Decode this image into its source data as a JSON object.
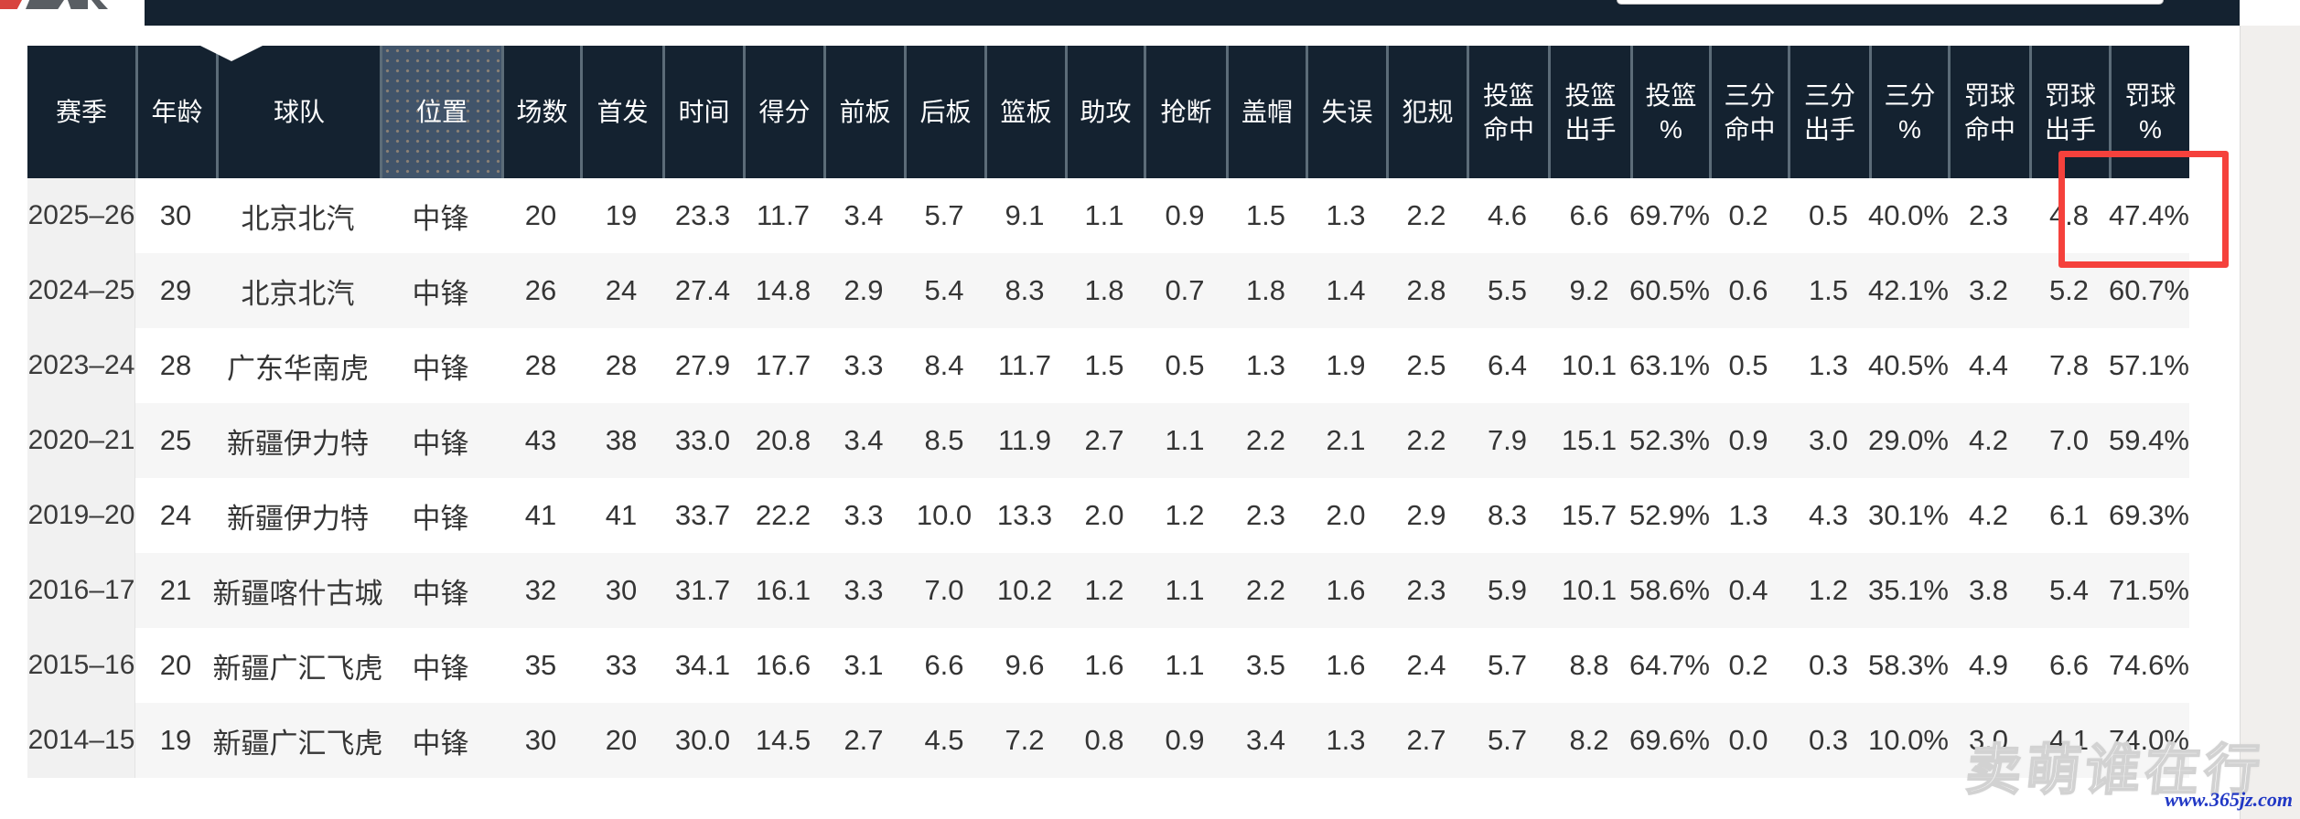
{
  "topbar": {
    "logo_icon": "site-logo",
    "search_box": {
      "value": "",
      "placeholder": ""
    }
  },
  "table": {
    "columns": [
      "赛季",
      "年龄",
      "球队",
      "位置",
      "场数",
      "首发",
      "时间",
      "得分",
      "前板",
      "后板",
      "篮板",
      "助攻",
      "抢断",
      "盖帽",
      "失误",
      "犯规",
      "投篮\n命中",
      "投篮\n出手",
      "投篮\n%",
      "三分\n命中",
      "三分\n出手",
      "三分\n%",
      "罚球\n命中",
      "罚球\n出手",
      "罚球\n%"
    ],
    "highlighted_column_index": 3,
    "rows": [
      [
        "2025–26",
        "30",
        "北京北汽",
        "中锋",
        "20",
        "19",
        "23.3",
        "11.7",
        "3.4",
        "5.7",
        "9.1",
        "1.1",
        "0.9",
        "1.5",
        "1.3",
        "2.2",
        "4.6",
        "6.6",
        "69.7%",
        "0.2",
        "0.5",
        "40.0%",
        "2.3",
        "4.8",
        "47.4%"
      ],
      [
        "2024–25",
        "29",
        "北京北汽",
        "中锋",
        "26",
        "24",
        "27.4",
        "14.8",
        "2.9",
        "5.4",
        "8.3",
        "1.8",
        "0.7",
        "1.8",
        "1.4",
        "2.8",
        "5.5",
        "9.2",
        "60.5%",
        "0.6",
        "1.5",
        "42.1%",
        "3.2",
        "5.2",
        "60.7%"
      ],
      [
        "2023–24",
        "28",
        "广东华南虎",
        "中锋",
        "28",
        "28",
        "27.9",
        "17.7",
        "3.3",
        "8.4",
        "11.7",
        "1.5",
        "0.5",
        "1.3",
        "1.9",
        "2.5",
        "6.4",
        "10.1",
        "63.1%",
        "0.5",
        "1.3",
        "40.5%",
        "4.4",
        "7.8",
        "57.1%"
      ],
      [
        "2020–21",
        "25",
        "新疆伊力特",
        "中锋",
        "43",
        "38",
        "33.0",
        "20.8",
        "3.4",
        "8.5",
        "11.9",
        "2.7",
        "1.1",
        "2.2",
        "2.1",
        "2.2",
        "7.9",
        "15.1",
        "52.3%",
        "0.9",
        "3.0",
        "29.0%",
        "4.2",
        "7.0",
        "59.4%"
      ],
      [
        "2019–20",
        "24",
        "新疆伊力特",
        "中锋",
        "41",
        "41",
        "33.7",
        "22.2",
        "3.3",
        "10.0",
        "13.3",
        "2.0",
        "1.2",
        "2.3",
        "2.0",
        "2.9",
        "8.3",
        "15.7",
        "52.9%",
        "1.3",
        "4.3",
        "30.1%",
        "4.2",
        "6.1",
        "69.3%"
      ],
      [
        "2016–17",
        "21",
        "新疆喀什古城",
        "中锋",
        "32",
        "30",
        "31.7",
        "16.1",
        "3.3",
        "7.0",
        "10.2",
        "1.2",
        "1.1",
        "2.2",
        "1.6",
        "2.3",
        "5.9",
        "10.1",
        "58.6%",
        "0.4",
        "1.2",
        "35.1%",
        "3.8",
        "5.4",
        "71.5%"
      ],
      [
        "2015–16",
        "20",
        "新疆广汇飞虎",
        "中锋",
        "35",
        "33",
        "34.1",
        "16.6",
        "3.1",
        "6.6",
        "9.6",
        "1.6",
        "1.1",
        "3.5",
        "1.6",
        "2.4",
        "5.7",
        "8.8",
        "64.7%",
        "0.2",
        "0.3",
        "58.3%",
        "4.9",
        "6.6",
        "74.6%"
      ],
      [
        "2014–15",
        "19",
        "新疆广汇飞虎",
        "中锋",
        "30",
        "20",
        "30.0",
        "14.5",
        "2.7",
        "4.5",
        "7.2",
        "0.8",
        "0.9",
        "3.4",
        "1.3",
        "2.7",
        "5.7",
        "8.2",
        "69.6%",
        "0.0",
        "0.3",
        "10.0%",
        "3.0",
        "4.1",
        "74.0%"
      ]
    ],
    "annotation": {
      "type": "red-highlight-box",
      "row_season": "2025–26",
      "columns": [
        "罚球出手",
        "罚球%"
      ],
      "values": [
        "4.8",
        "47.4%"
      ]
    }
  },
  "overlay": {
    "watermark_text": "卖萌谁在行",
    "site_url": "www.365jz.com"
  },
  "colors": {
    "header_bg": "#142230",
    "header_separator": "#5c6c78",
    "highlighted_column_bg": "#41546a",
    "row_alt_bg": "#f6f6f6",
    "season_column_bg": "#f1f1f1",
    "annotation_red": "#f5413c",
    "url_blue": "#2138c5",
    "logo_red": "#d8443e"
  }
}
